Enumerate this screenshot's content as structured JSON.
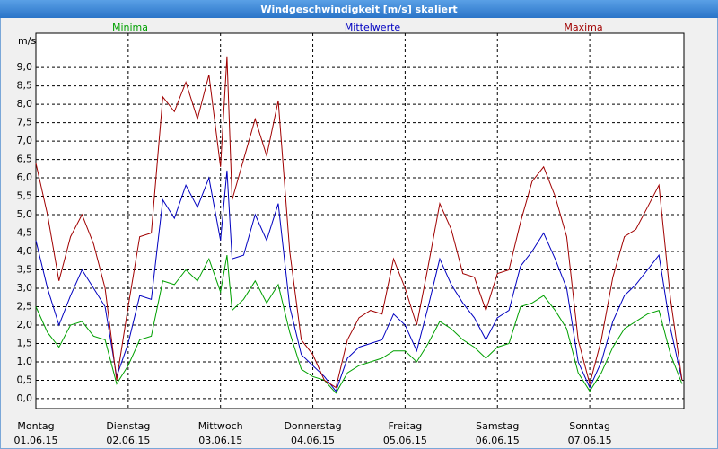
{
  "chart_data": {
    "type": "line",
    "title": "Windgeschwindigkeit [m/s] skaliert",
    "y_label": "m/s",
    "x": [
      0,
      0.125,
      0.25,
      0.375,
      0.5,
      0.625,
      0.75,
      0.875,
      1.0,
      1.125,
      1.25,
      1.375,
      1.5,
      1.625,
      1.75,
      1.875,
      2.0,
      2.07,
      2.125,
      2.25,
      2.375,
      2.5,
      2.625,
      2.75,
      2.875,
      3.0,
      3.125,
      3.25,
      3.375,
      3.5,
      3.625,
      3.75,
      3.875,
      4.0,
      4.125,
      4.25,
      4.375,
      4.5,
      4.625,
      4.75,
      4.875,
      5.0,
      5.125,
      5.25,
      5.375,
      5.5,
      5.625,
      5.75,
      5.875,
      6.0,
      6.125,
      6.25,
      6.375,
      6.5,
      6.625,
      6.75,
      6.875,
      7.0
    ],
    "series": [
      {
        "name": "Minima",
        "color": "#00a000",
        "values": [
          2.5,
          1.8,
          1.4,
          2.0,
          2.1,
          1.7,
          1.6,
          0.4,
          0.9,
          1.6,
          1.7,
          3.2,
          3.1,
          3.5,
          3.2,
          3.8,
          2.9,
          3.9,
          2.4,
          2.7,
          3.2,
          2.6,
          3.1,
          1.8,
          0.8,
          0.6,
          0.5,
          0.15,
          0.7,
          0.9,
          1.0,
          1.1,
          1.3,
          1.3,
          1.0,
          1.5,
          2.1,
          1.9,
          1.6,
          1.4,
          1.1,
          1.4,
          1.5,
          2.5,
          2.6,
          2.8,
          2.4,
          1.9,
          0.7,
          0.2,
          0.7,
          1.4,
          1.9,
          2.1,
          2.3,
          2.4,
          1.2,
          0.4
        ]
      },
      {
        "name": "Mittelwerte",
        "color": "#0000c0",
        "values": [
          4.3,
          3.0,
          2.0,
          2.8,
          3.5,
          3.0,
          2.5,
          0.6,
          1.5,
          2.8,
          2.7,
          5.4,
          4.9,
          5.8,
          5.2,
          6.0,
          4.3,
          6.2,
          3.8,
          3.9,
          5.0,
          4.3,
          5.3,
          2.5,
          1.2,
          0.9,
          0.6,
          0.2,
          1.1,
          1.4,
          1.5,
          1.6,
          2.3,
          2.0,
          1.3,
          2.5,
          3.8,
          3.1,
          2.6,
          2.2,
          1.6,
          2.2,
          2.4,
          3.6,
          4.0,
          4.5,
          3.8,
          3.0,
          1.0,
          0.3,
          1.0,
          2.1,
          2.8,
          3.1,
          3.5,
          3.9,
          1.9,
          0.5
        ]
      },
      {
        "name": "Maxima",
        "color": "#a00000",
        "values": [
          6.4,
          5.0,
          3.2,
          4.4,
          5.0,
          4.2,
          3.0,
          0.5,
          2.5,
          4.4,
          4.5,
          8.2,
          7.8,
          8.6,
          7.6,
          8.8,
          6.3,
          9.3,
          5.4,
          6.5,
          7.6,
          6.6,
          8.1,
          4.0,
          1.6,
          1.2,
          0.5,
          0.3,
          1.6,
          2.2,
          2.4,
          2.3,
          3.8,
          3.0,
          2.0,
          3.6,
          5.3,
          4.6,
          3.4,
          3.3,
          2.4,
          3.4,
          3.5,
          4.8,
          5.9,
          6.3,
          5.5,
          4.4,
          1.6,
          0.4,
          1.6,
          3.3,
          4.4,
          4.6,
          5.2,
          5.8,
          2.7,
          0.5
        ]
      }
    ],
    "xlim": [
      0,
      7.02
    ],
    "xticks": [
      {
        "value": 0,
        "label": "01.06.15"
      },
      {
        "value": 1,
        "label": "02.06.15"
      },
      {
        "value": 2,
        "label": "03.06.15"
      },
      {
        "value": 3,
        "label": "04.06.15"
      },
      {
        "value": 4,
        "label": "05.06.15"
      },
      {
        "value": 5,
        "label": "06.06.15"
      },
      {
        "value": 6,
        "label": "07.06.15"
      }
    ],
    "xtick_days": [
      "Montag",
      "Dienstag",
      "Mittwoch",
      "Donnerstag",
      "Freitag",
      "Samstag",
      "Sonntag"
    ],
    "ylim": [
      -0.27,
      9.93
    ],
    "yticks": [
      {
        "value": 0,
        "label": "0,0"
      },
      {
        "value": 0.5,
        "label": "0,5"
      },
      {
        "value": 1,
        "label": "1,0"
      },
      {
        "value": 1.5,
        "label": "1,5"
      },
      {
        "value": 2,
        "label": "2,0"
      },
      {
        "value": 2.5,
        "label": "2,5"
      },
      {
        "value": 3,
        "label": "3,0"
      },
      {
        "value": 3.5,
        "label": "3,5"
      },
      {
        "value": 4,
        "label": "4,0"
      },
      {
        "value": 4.5,
        "label": "4,5"
      },
      {
        "value": 5,
        "label": "5,0"
      },
      {
        "value": 5.5,
        "label": "5,5"
      },
      {
        "value": 6,
        "label": "6,0"
      },
      {
        "value": 6.5,
        "label": "6,5"
      },
      {
        "value": 7,
        "label": "7,0"
      },
      {
        "value": 7.5,
        "label": "7,5"
      },
      {
        "value": 8,
        "label": "8,0"
      },
      {
        "value": 8.5,
        "label": "8,5"
      },
      {
        "value": 9,
        "label": "9,0"
      }
    ],
    "grid": true
  }
}
